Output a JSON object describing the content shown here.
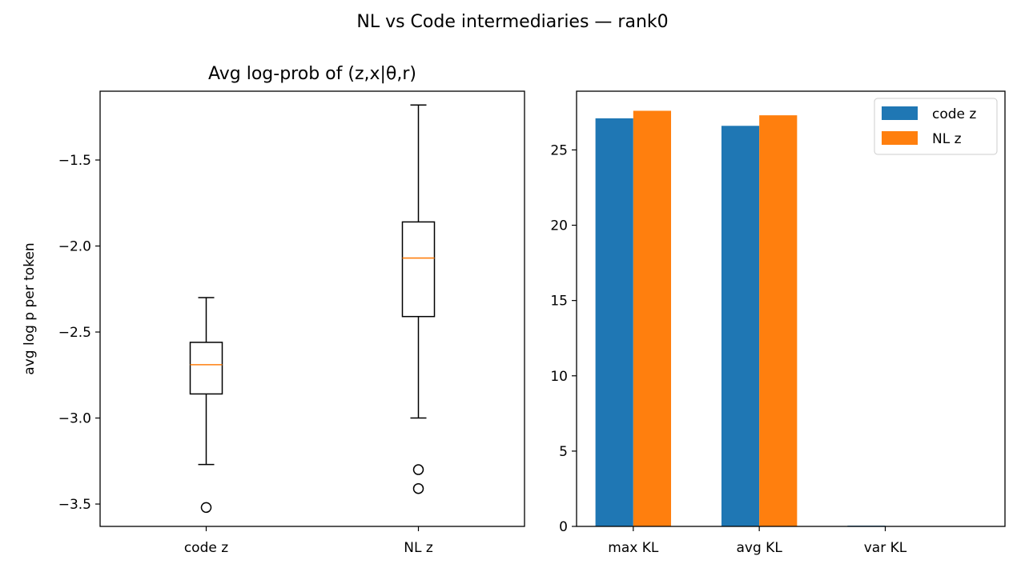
{
  "suptitle": "NL vs Code intermediaries — rank0",
  "chart_data": [
    {
      "type": "box",
      "title": "Avg log-prob of (z,x|θ,r)",
      "xlabel": "",
      "ylabel": "avg log p per token",
      "ylim": [
        -3.63,
        -1.1
      ],
      "yticks": [
        -3.5,
        -3.0,
        -2.5,
        -2.0,
        -1.5
      ],
      "ytick_labels": [
        "−3.5",
        "−3.0",
        "−2.5",
        "−2.0",
        "−1.5"
      ],
      "categories": [
        "code z",
        "NL z"
      ],
      "boxes": [
        {
          "label": "code z",
          "whisker_low": -3.27,
          "q1": -2.86,
          "median": -2.69,
          "q3": -2.56,
          "whisker_high": -2.3,
          "outliers": [
            -3.52
          ]
        },
        {
          "label": "NL z",
          "whisker_low": -3.0,
          "q1": -2.41,
          "median": -2.07,
          "q3": -1.86,
          "whisker_high": -1.18,
          "outliers": [
            -3.3,
            -3.41
          ]
        }
      ],
      "colors": {
        "box": "#000000",
        "median": "#ff7f0e"
      }
    },
    {
      "type": "bar",
      "title": "",
      "xlabel": "",
      "ylabel": "",
      "ylim": [
        0,
        28.9
      ],
      "yticks": [
        0,
        5,
        10,
        15,
        20,
        25
      ],
      "ytick_labels": [
        "0",
        "5",
        "10",
        "15",
        "20",
        "25"
      ],
      "categories": [
        "max KL",
        "avg KL",
        "var KL"
      ],
      "series": [
        {
          "name": "code z",
          "values": [
            27.1,
            26.6,
            0.05
          ],
          "color": "#1f77b4"
        },
        {
          "name": "NL z",
          "values": [
            27.6,
            27.3,
            0.0
          ],
          "color": "#ff7f0e"
        }
      ],
      "legend": "top-right"
    }
  ]
}
